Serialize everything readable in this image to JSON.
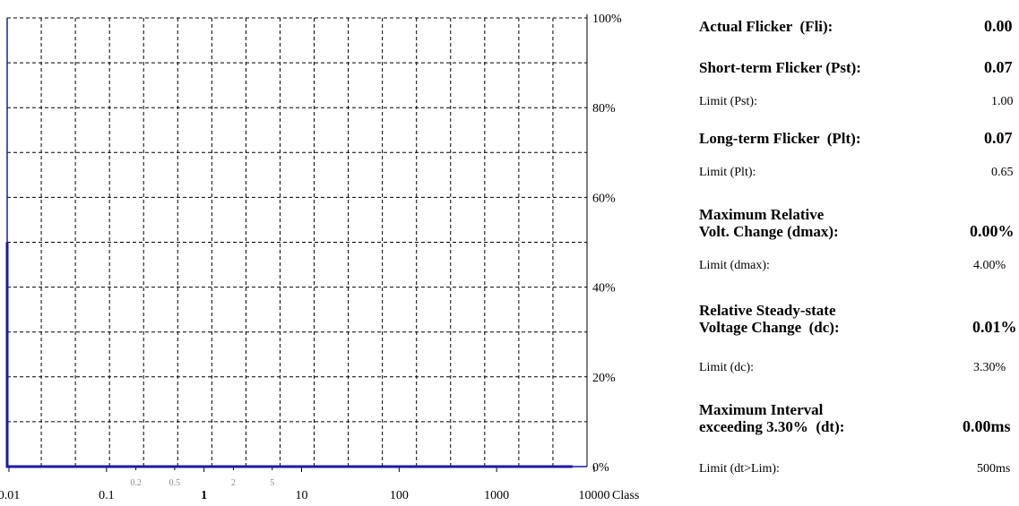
{
  "chart_data": {
    "type": "line",
    "title": "",
    "xlabel": "Class",
    "ylabel": "",
    "xscale": "log",
    "xlim": [
      0.01,
      10000
    ],
    "ylim": [
      0,
      100
    ],
    "grid": true,
    "y_ticks": [
      "0%",
      "20%",
      "40%",
      "60%",
      "80%",
      "100%"
    ],
    "x_ticks_major": [
      {
        "value": 0.01,
        "label": "0.01"
      },
      {
        "value": 0.1,
        "label": "0.1"
      },
      {
        "value": 1,
        "label": "1"
      },
      {
        "value": 10,
        "label": "10"
      },
      {
        "value": 100,
        "label": "100"
      },
      {
        "value": 1000,
        "label": "1000"
      },
      {
        "value": 10000,
        "label": "10000"
      }
    ],
    "x_ticks_minor": [
      {
        "value": 0.2,
        "label": "0.2"
      },
      {
        "value": 0.5,
        "label": "0.5"
      },
      {
        "value": 2,
        "label": "2"
      },
      {
        "value": 5,
        "label": "5"
      }
    ],
    "series": [
      {
        "color": "#1a1aa8",
        "points": [
          {
            "x": 0.01,
            "y": 50
          },
          {
            "x": 0.01,
            "y": 0
          },
          {
            "x": 6000,
            "y": 0
          }
        ]
      }
    ],
    "colors": {
      "axis": "#1a1aa8",
      "grid": "#000000",
      "minor_tick_label": "#8a8a8a"
    }
  },
  "panel": {
    "fli": {
      "label": "Actual Flicker  (Fli):",
      "value": "0.00"
    },
    "pst": {
      "label": "Short-term Flicker (Pst):",
      "value": "0.07",
      "limit_label": "Limit (Pst):",
      "limit_value": "1.00"
    },
    "plt": {
      "label": "Long-term Flicker  (Plt):",
      "value": "0.07",
      "limit_label": "Limit (Plt):",
      "limit_value": "0.65"
    },
    "dmax": {
      "label_line1": "Maximum Relative",
      "label_line2": "Volt. Change (dmax):",
      "value": "0.00%",
      "limit_label": "Limit (dmax):",
      "limit_value": "4.00%"
    },
    "dc": {
      "label_line1": "Relative Steady-state",
      "label_line2": "Voltage Change  (dc):",
      "value": "0.01%",
      "limit_label": "Limit (dc):",
      "limit_value": "3.30%"
    },
    "dt": {
      "label_line1": "Maximum Interval",
      "label_line2": "exceeding 3.30%  (dt):",
      "value": "0.00ms",
      "limit_label": "Limit (dt>Lim):",
      "limit_value": "500ms"
    }
  }
}
